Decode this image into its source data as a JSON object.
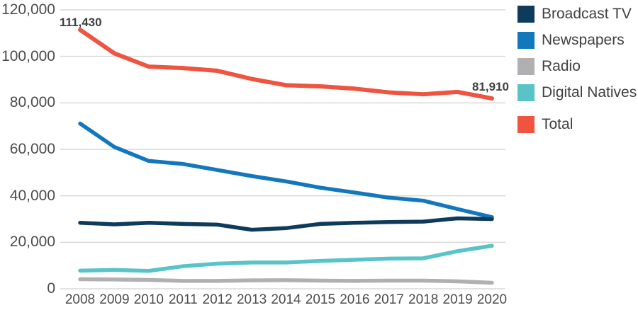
{
  "chart_data": {
    "type": "line",
    "categories": [
      "2008",
      "2009",
      "2010",
      "2011",
      "2012",
      "2013",
      "2014",
      "2015",
      "2016",
      "2017",
      "2018",
      "2019",
      "2020"
    ],
    "series": [
      {
        "name": "Broadcast TV",
        "color": "#0E3A5C",
        "values": [
          28400,
          27700,
          28400,
          27900,
          27600,
          25400,
          26100,
          27900,
          28400,
          28700,
          28900,
          30300,
          30000
        ]
      },
      {
        "name": "Newspapers",
        "color": "#1377BE",
        "values": [
          71100,
          61000,
          55000,
          53700,
          51100,
          48500,
          46200,
          43500,
          41400,
          39200,
          37900,
          34300,
          30820
        ]
      },
      {
        "name": "Radio",
        "color": "#B0B0B2",
        "values": [
          4100,
          4000,
          3800,
          3400,
          3400,
          3600,
          3700,
          3500,
          3400,
          3500,
          3500,
          3200,
          2600
        ]
      },
      {
        "name": "Digital Natives",
        "color": "#58C4C8",
        "values": [
          7800,
          8100,
          7700,
          9700,
          10800,
          11300,
          11300,
          12000,
          12500,
          13000,
          13100,
          16200,
          18500
        ]
      },
      {
        "name": "Total",
        "color": "#EE5440",
        "values": [
          111430,
          101300,
          95600,
          95000,
          93800,
          90300,
          87600,
          87100,
          86100,
          84500,
          83700,
          84700,
          81910
        ]
      }
    ],
    "ylim": [
      0,
      120000
    ],
    "y_tick_step": 20000,
    "y_tick_labels": [
      "0",
      "20,000",
      "40,000",
      "60,000",
      "80,000",
      "100,000",
      "120,000"
    ],
    "grid": "horizontal",
    "gridline_color": "#D9D9D9",
    "legend_position": "right",
    "annotations": [
      {
        "text": "111,430",
        "x_index": 0,
        "value": 111430,
        "align": "left"
      },
      {
        "text": "81,910",
        "x_index": 12,
        "value": 81910,
        "align": "right"
      }
    ]
  }
}
